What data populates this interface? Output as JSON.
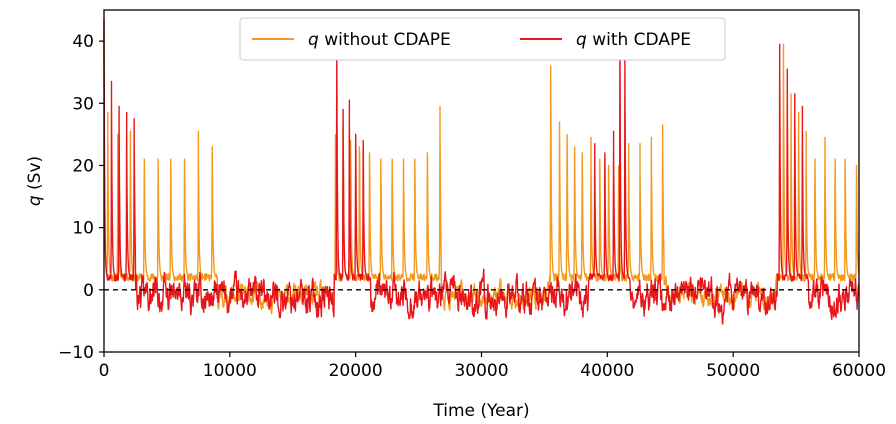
{
  "chart_data": {
    "type": "line",
    "xlabel": "Time (Year)",
    "ylabel_symbol": "q",
    "ylabel_unit": " (Sv)",
    "xlim": [
      0,
      60000
    ],
    "ylim": [
      -10,
      45
    ],
    "xticks": [
      0,
      10000,
      20000,
      30000,
      40000,
      50000,
      60000
    ],
    "xtick_labels": [
      "0",
      "10000",
      "20000",
      "30000",
      "40000",
      "50000",
      "60000"
    ],
    "yticks": [
      -10,
      0,
      10,
      20,
      30,
      40
    ],
    "ytick_labels": [
      "−10",
      "0",
      "10",
      "20",
      "30",
      "40"
    ],
    "reference_line": {
      "y": 0,
      "style": "dashed",
      "color": "#000000"
    },
    "legend_placement": "top-center",
    "grid": false,
    "series": [
      {
        "name_symbol": "q",
        "name_text": " without CDAPE",
        "color": "#F39A1E",
        "description": "oscillatory phases with periodic spikes",
        "active_phases": [
          {
            "t_start": 0,
            "t_end": 9000,
            "spike_times": [
              0,
              300,
              1100,
              2100,
              3200,
              4300,
              5300,
              6400,
              7500,
              8600
            ],
            "spike_peaks": [
              38,
              25,
              25,
              22,
              21,
              21,
              21,
              21,
              22,
              23
            ]
          },
          {
            "t_start": 18300,
            "t_end": 26800,
            "spike_times": [
              18400,
              19000,
              19600,
              20300,
              21100,
              22000,
              22900,
              23800,
              24700,
              25700,
              26700
            ],
            "spike_peaks": [
              25,
              27,
              24,
              23,
              22,
              21,
              21,
              21,
              21,
              22,
              26
            ]
          },
          {
            "t_start": 35400,
            "t_end": 44500,
            "spike_times": [
              35500,
              36200,
              36800,
              37400,
              38000,
              38700,
              39400,
              40100,
              40900,
              41700,
              42600,
              43500,
              44400
            ],
            "spike_peaks": [
              36,
              27,
              25,
              23,
              22,
              21,
              21,
              20,
              20,
              20,
              20,
              21,
              23
            ]
          },
          {
            "t_start": 53400,
            "t_end": 60000,
            "spike_times": [
              54000,
              54600,
              55200,
              55800,
              56500,
              57300,
              58100,
              58900,
              59800
            ],
            "spike_peaks": [
              36,
              28,
              25,
              22,
              21,
              21,
              21,
              21,
              20
            ]
          }
        ]
      },
      {
        "name_symbol": "q",
        "name_text": " with CDAPE",
        "color": "#E8161B",
        "description": "shorter oscillatory phases, stronger negative variability in quiet phases",
        "active_phases": [
          {
            "t_start": 0,
            "t_end": 2500,
            "spike_times": [
              0,
              600,
              1200,
              1800,
              2400
            ],
            "spike_peaks": [
              40,
              30,
              26,
              25,
              24
            ]
          },
          {
            "t_start": 18300,
            "t_end": 21200,
            "spike_times": [
              18500,
              19000,
              19500,
              20000,
              20600
            ],
            "spike_peaks": [
              38,
              29,
              27,
              25,
              24
            ]
          },
          {
            "t_start": 38500,
            "t_end": 41800,
            "spike_times": [
              39000,
              39800,
              40500,
              41000,
              41400
            ],
            "spike_peaks": [
              20,
              22,
              22,
              42,
              35
            ]
          },
          {
            "t_start": 53500,
            "t_end": 56000,
            "spike_times": [
              53700,
              54300,
              54900,
              55500
            ],
            "spike_peaks": [
              36,
              32,
              28,
              26
            ]
          }
        ]
      }
    ]
  }
}
